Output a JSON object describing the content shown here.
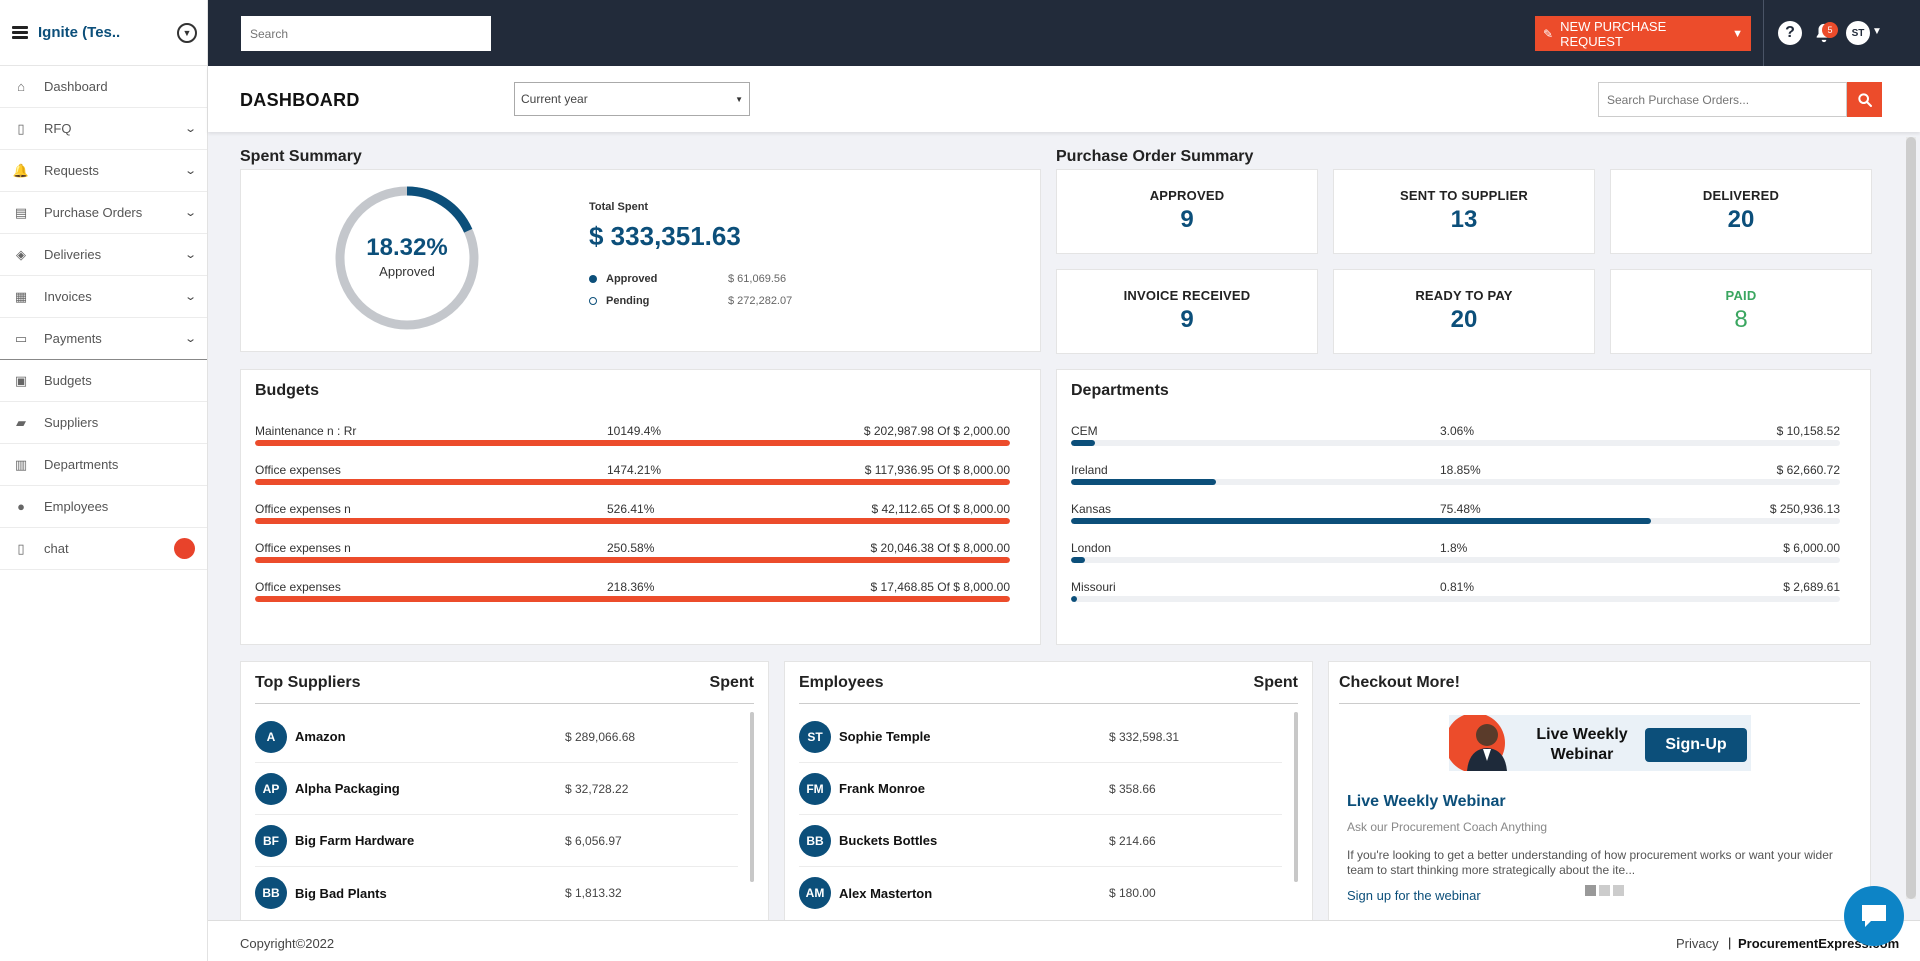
{
  "sidebar": {
    "brand": "Ignite (Tes..",
    "items": [
      {
        "label": "Dashboard",
        "icon": "home-icon",
        "expandable": false
      },
      {
        "label": "RFQ",
        "icon": "document-icon",
        "expandable": true
      },
      {
        "label": "Requests",
        "icon": "bell-icon",
        "expandable": true
      },
      {
        "label": "Purchase Orders",
        "icon": "file-list-icon",
        "expandable": true
      },
      {
        "label": "Deliveries",
        "icon": "box-icon",
        "expandable": true
      },
      {
        "label": "Invoices",
        "icon": "invoice-icon",
        "expandable": true
      },
      {
        "label": "Payments",
        "icon": "money-icon",
        "expandable": true
      },
      {
        "label": "Budgets",
        "icon": "briefcase-icon",
        "expandable": false
      },
      {
        "label": "Suppliers",
        "icon": "truck-icon",
        "expandable": false
      },
      {
        "label": "Departments",
        "icon": "building-icon",
        "expandable": false
      },
      {
        "label": "Employees",
        "icon": "users-icon",
        "expandable": false
      },
      {
        "label": "chat",
        "icon": "chat-doc-icon",
        "expandable": false
      }
    ]
  },
  "topbar": {
    "search_placeholder": "Search",
    "new_request_label": "NEW PURCHASE REQUEST",
    "notification_count": "5",
    "user_initials": "ST"
  },
  "header": {
    "title": "DASHBOARD",
    "period": "Current year",
    "po_search_placeholder": "Search Purchase Orders..."
  },
  "spent_summary": {
    "title": "Spent Summary",
    "percent_label": "18.32%",
    "percent_value": 18.32,
    "percent_caption": "Approved",
    "total_label": "Total Spent",
    "total_value": "$ 333,351.63",
    "legend": [
      {
        "name": "Approved",
        "value": "$ 61,069.56"
      },
      {
        "name": "Pending",
        "value": "$ 272,282.07"
      }
    ]
  },
  "po_summary": {
    "title": "Purchase Order Summary",
    "stats": [
      {
        "label": "APPROVED",
        "value": "9"
      },
      {
        "label": "SENT TO SUPPLIER",
        "value": "13"
      },
      {
        "label": "DELIVERED",
        "value": "20"
      },
      {
        "label": "INVOICE RECEIVED",
        "value": "9"
      },
      {
        "label": "READY TO PAY",
        "value": "20"
      },
      {
        "label": "PAID",
        "value": "8"
      }
    ]
  },
  "budgets": {
    "title": "Budgets",
    "rows": [
      {
        "name": "Maintenance n : Rr",
        "percent": "10149.4%",
        "amount": "$ 202,987.98 Of $ 2,000.00",
        "fill": 100
      },
      {
        "name": "Office expenses",
        "percent": "1474.21%",
        "amount": "$ 117,936.95 Of $ 8,000.00",
        "fill": 100
      },
      {
        "name": "Office expenses n",
        "percent": "526.41%",
        "amount": "$ 42,112.65 Of $ 8,000.00",
        "fill": 100
      },
      {
        "name": "Office expenses n",
        "percent": "250.58%",
        "amount": "$ 20,046.38 Of $ 8,000.00",
        "fill": 100
      },
      {
        "name": "Office expenses",
        "percent": "218.36%",
        "amount": "$ 17,468.85 Of $ 8,000.00",
        "fill": 100
      }
    ]
  },
  "departments": {
    "title": "Departments",
    "rows": [
      {
        "name": "CEM",
        "percent": "3.06%",
        "amount": "$ 10,158.52",
        "fill": 3.06
      },
      {
        "name": "Ireland",
        "percent": "18.85%",
        "amount": "$ 62,660.72",
        "fill": 18.85
      },
      {
        "name": "Kansas",
        "percent": "75.48%",
        "amount": "$ 250,936.13",
        "fill": 75.48
      },
      {
        "name": "London",
        "percent": "1.8%",
        "amount": "$ 6,000.00",
        "fill": 1.8
      },
      {
        "name": "Missouri",
        "percent": "0.81%",
        "amount": "$ 2,689.61",
        "fill": 0.81
      }
    ]
  },
  "top_suppliers": {
    "title": "Top Suppliers",
    "col": "Spent",
    "rows": [
      {
        "initials": "A",
        "name": "Amazon",
        "amount": "$ 289,066.68"
      },
      {
        "initials": "AP",
        "name": "Alpha Packaging",
        "amount": "$ 32,728.22"
      },
      {
        "initials": "BF",
        "name": "Big Farm Hardware",
        "amount": "$ 6,056.97"
      },
      {
        "initials": "BB",
        "name": "Big Bad Plants",
        "amount": "$ 1,813.32"
      }
    ]
  },
  "employees": {
    "title": "Employees",
    "col": "Spent",
    "rows": [
      {
        "initials": "ST",
        "name": "Sophie Temple",
        "amount": "$ 332,598.31"
      },
      {
        "initials": "FM",
        "name": "Frank Monroe",
        "amount": "$ 358.66"
      },
      {
        "initials": "BB",
        "name": "Buckets Bottles",
        "amount": "$ 214.66"
      },
      {
        "initials": "AM",
        "name": "Alex Masterton",
        "amount": "$ 180.00"
      }
    ]
  },
  "checkout": {
    "title": "Checkout More!",
    "banner_text": "Live Weekly Webinar",
    "banner_button": "Sign-Up",
    "item_title": "Live Weekly Webinar",
    "item_subtitle": "Ask our Procurement Coach Anything",
    "item_desc": "If you're looking to get a better understanding of how procurement works or want your wider team to start thinking more strategically about the ite...",
    "item_link": "Sign up for the webinar"
  },
  "footer": {
    "copyright": "Copyright©2022",
    "privacy": "Privacy",
    "brand": "ProcurementExpress.com"
  },
  "colors": {
    "navy": "#222b3a",
    "accent": "#ec4c2b",
    "primary": "#0c4f7a",
    "paid": "#3aa660"
  }
}
